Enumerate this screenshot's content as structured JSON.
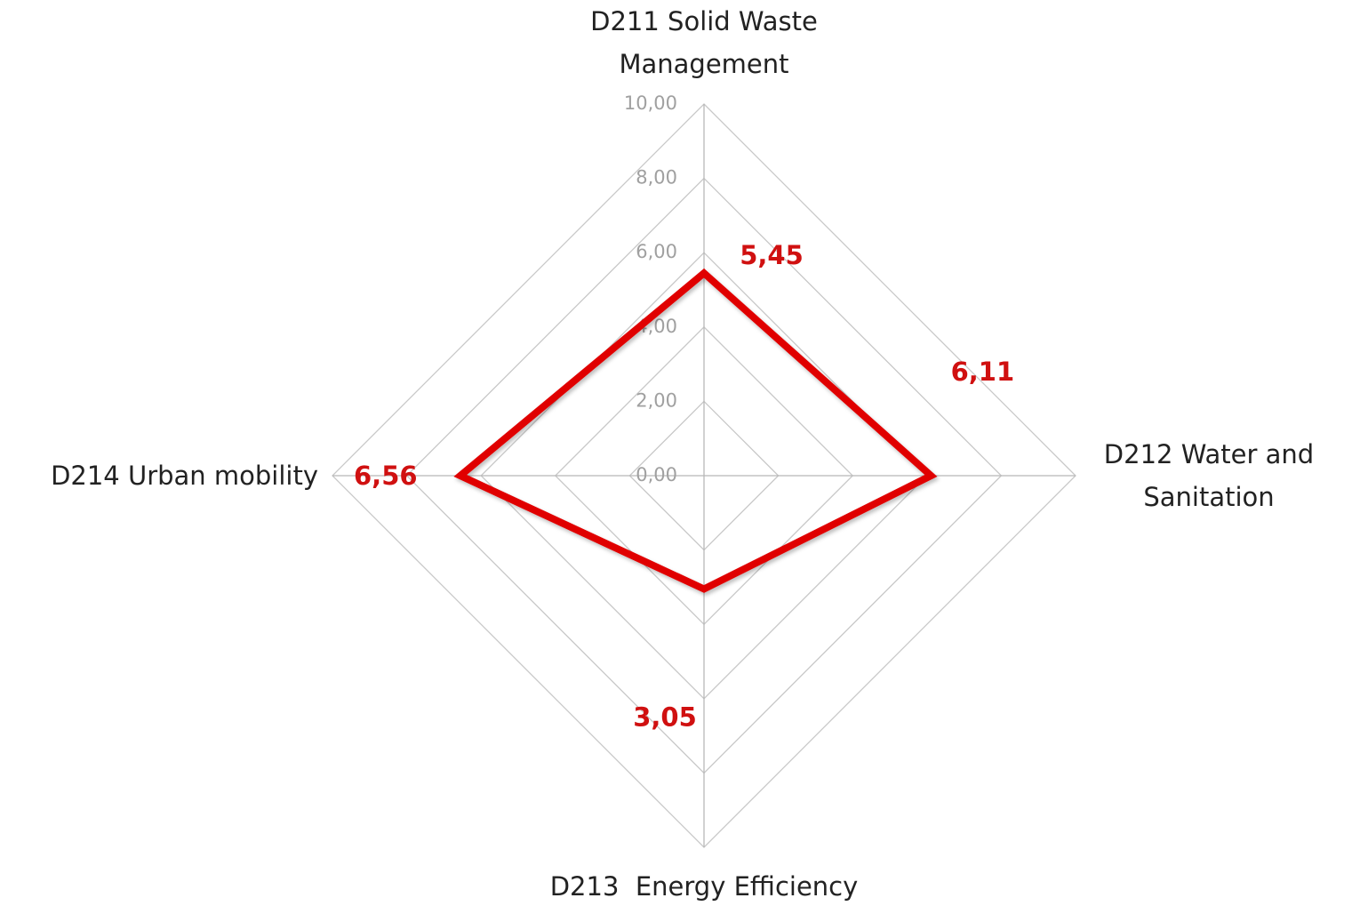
{
  "chart_data": {
    "type": "radar",
    "categories": [
      "D211 Solid Waste Management",
      "D212 Water and Sanitation",
      "D213  Energy Efficiency",
      "D214 Urban mobility"
    ],
    "series": [
      {
        "name": null,
        "color": "#e00000",
        "values": [
          5.45,
          6.11,
          3.05,
          6.56
        ],
        "value_labels": [
          "5,45",
          "6,11",
          "3,05",
          "6,56"
        ]
      }
    ],
    "rlim": [
      0,
      10
    ],
    "rticks": [
      {
        "value": 0,
        "label": "0,00"
      },
      {
        "value": 2,
        "label": "2,00"
      },
      {
        "value": 4,
        "label": "4,00"
      },
      {
        "value": 6,
        "label": "6,00"
      },
      {
        "value": 8,
        "label": "8,00"
      },
      {
        "value": 10,
        "label": "10,00"
      }
    ],
    "grid": true
  }
}
